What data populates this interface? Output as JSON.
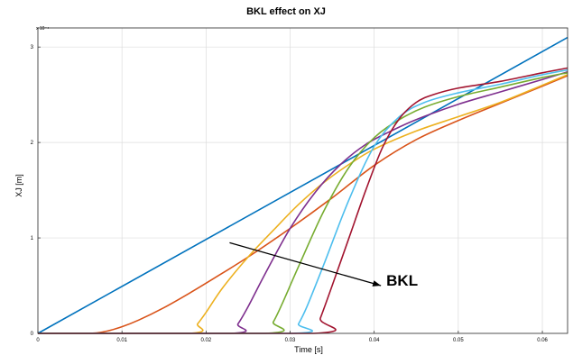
{
  "chart_data": {
    "type": "line",
    "title": "BKL effect on XJ",
    "xlabel": "Time [s]",
    "ylabel": "XJ [m]",
    "xlim": [
      0,
      0.063
    ],
    "ylim": [
      0,
      3.2
    ],
    "y_exponent_label": "x 10⁻⁴",
    "x_ticks": [
      0,
      0.01,
      0.02,
      0.03,
      0.04,
      0.05,
      0.06
    ],
    "x_tick_labels": [
      "0",
      "0.01",
      "0.02",
      "0.03",
      "0.04",
      "0.05",
      "0.06"
    ],
    "y_ticks": [
      0,
      1,
      2,
      3
    ],
    "y_tick_labels": [
      "0",
      "1",
      "2",
      "3"
    ],
    "grid": true,
    "legend": "none",
    "annotation": {
      "text": "BKL",
      "arrow_from": [
        0.0228,
        0.95
      ],
      "arrow_to": [
        0.0408,
        0.5
      ]
    },
    "series": [
      {
        "color": "#0072BD",
        "x": [
          0,
          0.063
        ],
        "y": [
          0,
          3.1
        ]
      },
      {
        "color": "#D95319",
        "x": [
          0,
          0.006,
          0.008,
          0.01,
          0.012,
          0.015,
          0.018,
          0.021,
          0.025,
          0.03,
          0.035,
          0.04,
          0.045,
          0.05,
          0.055,
          0.06,
          0.063
        ],
        "y": [
          0,
          0,
          0.02,
          0.07,
          0.14,
          0.27,
          0.42,
          0.58,
          0.8,
          1.1,
          1.42,
          1.76,
          2.03,
          2.23,
          2.41,
          2.59,
          2.7
        ]
      },
      {
        "color": "#EDB120",
        "x": [
          0,
          0.018,
          0.019,
          0.02,
          0.022,
          0.025,
          0.028,
          0.031,
          0.034,
          0.037,
          0.04,
          0.045,
          0.05,
          0.055,
          0.06,
          0.063
        ],
        "y": [
          0,
          0,
          0.1,
          0.22,
          0.48,
          0.8,
          1.08,
          1.35,
          1.58,
          1.77,
          1.93,
          2.12,
          2.27,
          2.42,
          2.6,
          2.71
        ]
      },
      {
        "color": "#7E2F8E",
        "x": [
          0,
          0.0228,
          0.0238,
          0.025,
          0.027,
          0.03,
          0.033,
          0.036,
          0.039,
          0.042,
          0.045,
          0.05,
          0.055,
          0.06,
          0.063
        ],
        "y": [
          0,
          0,
          0.1,
          0.28,
          0.62,
          1.1,
          1.48,
          1.77,
          1.98,
          2.12,
          2.24,
          2.4,
          2.53,
          2.66,
          2.74
        ]
      },
      {
        "color": "#77AC30",
        "x": [
          0,
          0.027,
          0.028,
          0.029,
          0.031,
          0.034,
          0.037,
          0.04,
          0.043,
          0.046,
          0.05,
          0.055,
          0.06,
          0.063
        ],
        "y": [
          0,
          0,
          0.12,
          0.3,
          0.7,
          1.28,
          1.74,
          2.05,
          2.24,
          2.37,
          2.48,
          2.58,
          2.68,
          2.73
        ]
      },
      {
        "color": "#4DBEEE",
        "x": [
          0,
          0.0302,
          0.031,
          0.032,
          0.034,
          0.037,
          0.04,
          0.043,
          0.046,
          0.05,
          0.055,
          0.06,
          0.063
        ],
        "y": [
          0,
          0,
          0.1,
          0.28,
          0.72,
          1.4,
          1.96,
          2.27,
          2.42,
          2.52,
          2.61,
          2.71,
          2.76
        ]
      },
      {
        "color": "#A2142F",
        "x": [
          0,
          0.0328,
          0.0336,
          0.035,
          0.037,
          0.039,
          0.041,
          0.043,
          0.045,
          0.047,
          0.05,
          0.055,
          0.06,
          0.063
        ],
        "y": [
          0,
          0,
          0.16,
          0.5,
          1.0,
          1.5,
          1.95,
          2.25,
          2.42,
          2.5,
          2.57,
          2.64,
          2.73,
          2.78
        ]
      }
    ]
  }
}
